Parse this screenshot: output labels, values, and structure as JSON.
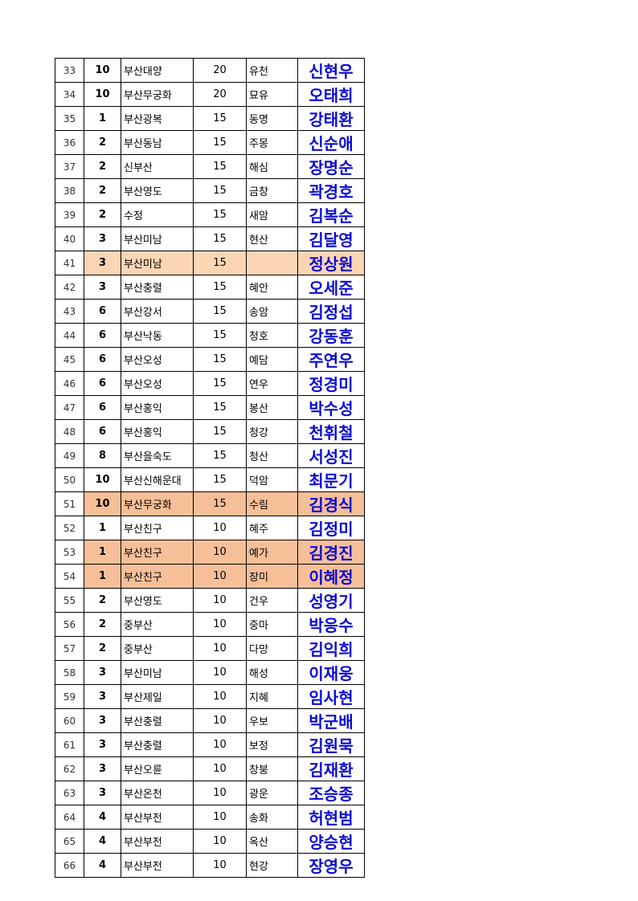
{
  "table": {
    "rows": [
      {
        "cells": [
          33,
          10,
          "부산대양",
          20,
          "유천",
          "신현우"
        ]
      },
      {
        "cells": [
          34,
          10,
          "부산무궁화",
          20,
          "묘유",
          "오태희"
        ]
      },
      {
        "cells": [
          35,
          1,
          "부산광복",
          15,
          "동명",
          "강태환"
        ]
      },
      {
        "cells": [
          36,
          2,
          "부산동남",
          15,
          "주몽",
          "신순애"
        ]
      },
      {
        "cells": [
          37,
          2,
          "신부산",
          15,
          "해심",
          "장명순"
        ]
      },
      {
        "cells": [
          38,
          2,
          "부산영도",
          15,
          "금창",
          "곽경호"
        ]
      },
      {
        "cells": [
          39,
          2,
          "수정",
          15,
          "새암",
          "김복순"
        ]
      },
      {
        "cells": [
          40,
          3,
          "부산미남",
          15,
          "현산",
          "김달영"
        ]
      },
      {
        "cells": [
          41,
          3,
          "부산미남",
          15,
          null,
          "정상원"
        ],
        "fill": "#fcd5b4"
      },
      {
        "cells": [
          42,
          3,
          "부산충렬",
          15,
          "혜안",
          "오세준"
        ]
      },
      {
        "cells": [
          43,
          6,
          "부산강서",
          15,
          "송암",
          "김정섭"
        ]
      },
      {
        "cells": [
          44,
          6,
          "부산낙동",
          15,
          "청호",
          "강동훈"
        ]
      },
      {
        "cells": [
          45,
          6,
          "부산오성",
          15,
          "예담",
          "주연우"
        ]
      },
      {
        "cells": [
          46,
          6,
          "부산오성",
          15,
          "연우",
          "정경미"
        ]
      },
      {
        "cells": [
          47,
          6,
          "부산홍익",
          15,
          "봉산",
          "박수성"
        ]
      },
      {
        "cells": [
          48,
          6,
          "부산홍익",
          15,
          "청강",
          "천휘철"
        ]
      },
      {
        "cells": [
          49,
          8,
          "부산을숙도",
          15,
          "청산",
          "서성진"
        ]
      },
      {
        "cells": [
          50,
          10,
          "부산신해운대",
          15,
          "덕암",
          "최문기"
        ]
      },
      {
        "cells": [
          51,
          10,
          "부산무궁화",
          15,
          "수림",
          "김경식"
        ],
        "fill": "#f7bf98"
      },
      {
        "cells": [
          52,
          1,
          "부산친구",
          10,
          "혜주",
          "김정미"
        ]
      },
      {
        "cells": [
          53,
          1,
          "부산친구",
          10,
          "예가",
          "김경진"
        ],
        "fill": "#f7bf98"
      },
      {
        "cells": [
          54,
          1,
          "부산친구",
          10,
          "장미",
          "이혜정"
        ],
        "fill": "#f7bf98"
      },
      {
        "cells": [
          55,
          2,
          "부산영도",
          10,
          "건우",
          "성영기"
        ]
      },
      {
        "cells": [
          56,
          2,
          "중부산",
          10,
          "중마",
          "박응수"
        ]
      },
      {
        "cells": [
          57,
          2,
          "중부산",
          10,
          "다망",
          "김익희"
        ]
      },
      {
        "cells": [
          58,
          3,
          "부산미남",
          10,
          "해성",
          "이재웅"
        ]
      },
      {
        "cells": [
          59,
          3,
          "부산제일",
          10,
          "지혜",
          "임사현"
        ]
      },
      {
        "cells": [
          60,
          3,
          "부산충렬",
          10,
          "우보",
          "박군배"
        ]
      },
      {
        "cells": [
          61,
          3,
          "부산충렬",
          10,
          "보정",
          "김원묵"
        ]
      },
      {
        "cells": [
          62,
          3,
          "부산오륜",
          10,
          "창붕",
          "김재환"
        ]
      },
      {
        "cells": [
          63,
          3,
          "부산온천",
          10,
          "광운",
          "조승종"
        ]
      },
      {
        "cells": [
          64,
          4,
          "부산부전",
          10,
          "송화",
          "허현범"
        ]
      },
      {
        "cells": [
          65,
          4,
          "부산부전",
          10,
          "옥산",
          "양승현"
        ]
      },
      {
        "cells": [
          66,
          4,
          "부산부전",
          10,
          "현강",
          "장영우"
        ]
      }
    ]
  }
}
